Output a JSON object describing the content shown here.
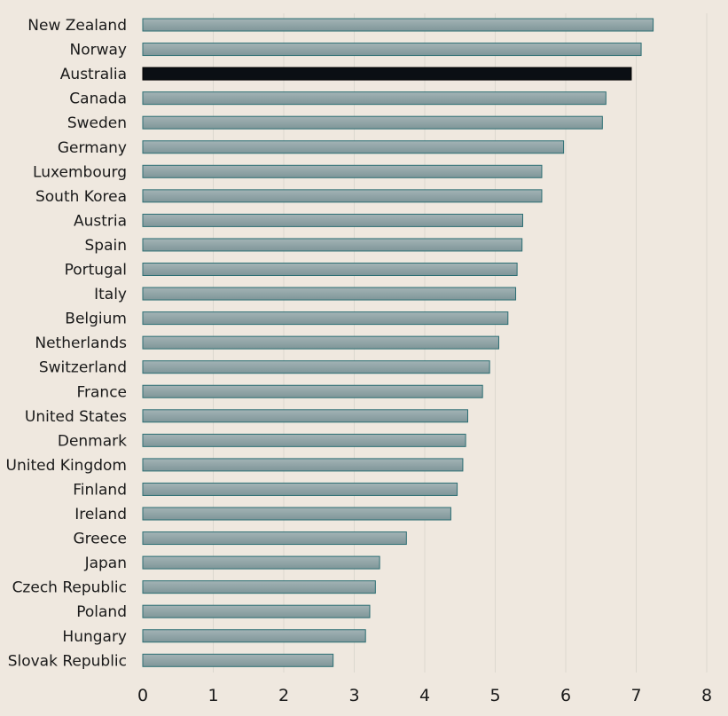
{
  "chart_data": {
    "type": "bar",
    "orientation": "horizontal",
    "title": "",
    "xlabel": "",
    "ylabel": "",
    "xlim": [
      0,
      8
    ],
    "xticks": [
      "0",
      "1",
      "2",
      "3",
      "4",
      "5",
      "6",
      "7",
      "8"
    ],
    "grid": "vertical",
    "categories": [
      "New Zealand",
      "Norway",
      "Australia",
      "Canada",
      "Sweden",
      "Germany",
      "Luxembourg",
      "South Korea",
      "Austria",
      "Spain",
      "Portugal",
      "Italy",
      "Belgium",
      "Netherlands",
      "Switzerland",
      "France",
      "United States",
      "Denmark",
      "United Kingdom",
      "Finland",
      "Ireland",
      "Greece",
      "Japan",
      "Czech Republic",
      "Poland",
      "Hungary",
      "Slovak Republic"
    ],
    "values": [
      7.24,
      7.07,
      6.93,
      6.57,
      6.52,
      5.97,
      5.66,
      5.66,
      5.39,
      5.38,
      5.31,
      5.29,
      5.18,
      5.05,
      4.92,
      4.82,
      4.61,
      4.58,
      4.54,
      4.46,
      4.37,
      3.74,
      3.36,
      3.3,
      3.22,
      3.16,
      2.7
    ],
    "highlight": "Australia",
    "colors": {
      "background": "#efe8df",
      "bar_fill": "#8fa3a6",
      "bar_stroke": "#2c6e73",
      "highlight_fill": "#0b0f14",
      "highlight_stroke": "#000000",
      "gridline": "#dcd8cf",
      "text": "#1a1a1a"
    }
  }
}
